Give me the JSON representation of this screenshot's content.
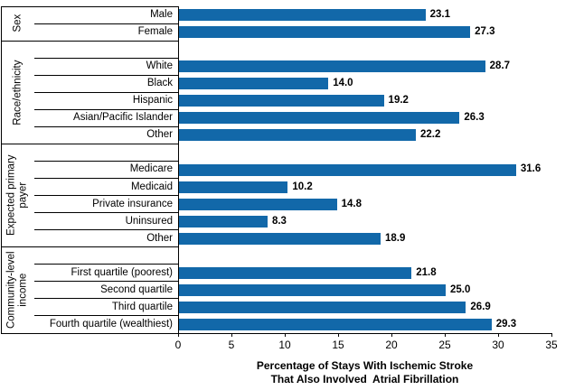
{
  "chart_data": {
    "type": "bar",
    "orientation": "horizontal",
    "title": "",
    "xlabel": "Percentage of Stays With Ischemic Stroke\nThat Also Involved  Atrial Fibrillation",
    "xlim": [
      0,
      35
    ],
    "xticks": [
      0,
      5,
      10,
      15,
      20,
      25,
      30,
      35
    ],
    "grid": false,
    "legend": "none",
    "bar_color": "#1268A9",
    "axis_color": "#000000",
    "text_color": "#000000",
    "background_color": "#FFFFFF",
    "groups": [
      {
        "label": "Sex",
        "categories": [
          "Male",
          "Female"
        ],
        "values": [
          23.1,
          27.3
        ]
      },
      {
        "label": "Race/ethnicity",
        "categories": [
          "White",
          "Black",
          "Hispanic",
          "Asian/Pacific Islander",
          "Other"
        ],
        "values": [
          28.7,
          14.0,
          19.2,
          26.3,
          22.2
        ]
      },
      {
        "label": "Expected primary\npayer",
        "categories": [
          "Medicare",
          "Medicaid",
          "Private insurance",
          "Uninsured",
          "Other"
        ],
        "values": [
          31.6,
          10.2,
          14.8,
          8.3,
          18.9
        ]
      },
      {
        "label": "Community-level\nincome",
        "categories": [
          "First quartile (poorest)",
          "Second quartile",
          "Third quartile",
          "Fourth quartile (wealthiest)"
        ],
        "values": [
          21.8,
          25.0,
          26.9,
          29.3
        ]
      }
    ]
  }
}
